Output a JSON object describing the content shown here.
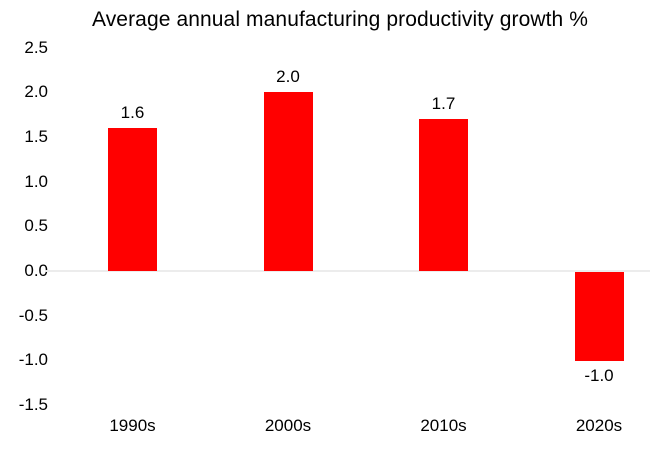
{
  "chart_data": {
    "type": "bar",
    "title": "Average annual manufacturing productivity growth %",
    "categories": [
      "1990s",
      "2000s",
      "2010s",
      "2020s"
    ],
    "values": [
      1.6,
      2.0,
      1.7,
      -1.0
    ],
    "data_labels": [
      "1.6",
      "2.0",
      "1.7",
      "-1.0"
    ],
    "y_ticks": [
      2.5,
      2.0,
      1.5,
      1.0,
      0.5,
      0.0,
      -0.5,
      -1.0,
      -1.5
    ],
    "y_tick_labels": [
      "2.5",
      "2.0",
      "1.5",
      "1.0",
      "0.5",
      "0.0",
      "-0.5",
      "-1.0",
      "-1.5"
    ],
    "ylim": [
      -1.5,
      2.5
    ],
    "xlabel": "",
    "ylabel": "",
    "legend": "none",
    "grid": "zero-line-only",
    "bar_color": "#FF0000",
    "zero_line_color": "#ECECEC",
    "text_color": "#000000",
    "background_color": "#FFFFFF"
  }
}
